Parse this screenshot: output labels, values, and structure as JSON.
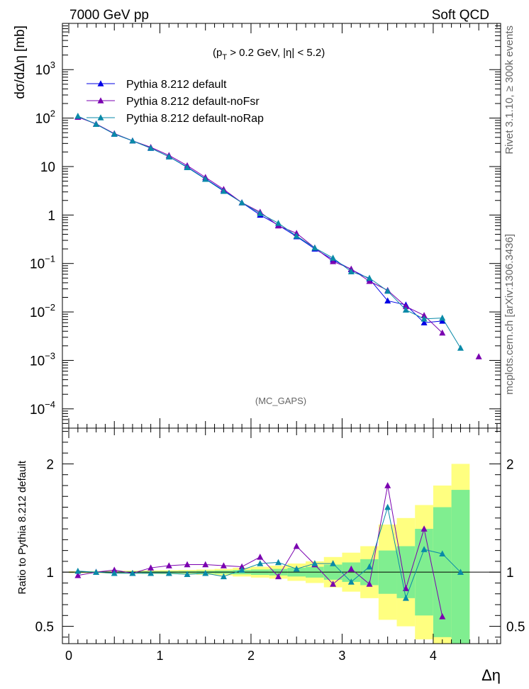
{
  "header": {
    "left": "7000 GeV pp",
    "right": "Soft QCD",
    "cut": "(pT > 0.2 GeV, |η| < 5.2)",
    "cut_parts": {
      "open": "(p",
      "sub": "T",
      "rest": " > 0.2 GeV, |η| < 5.2)"
    },
    "watermark": "(MC_GAPS)",
    "side_top": "Rivet 3.1.10, ≥ 300k events",
    "side_bottom": "mcplots.cern.ch [arXiv:1306.3436]"
  },
  "colors": {
    "default": "#0000e6",
    "noFsr": "#7a00b0",
    "noRap": "#0a8aa8",
    "band_outer": "#ffff80",
    "band_inner": "#80ee90"
  },
  "chart_data": [
    {
      "type": "line",
      "panel": "main",
      "ylabel": "dσ/dΔη [mb]",
      "ylog": true,
      "ylim": [
        4e-05,
        9000
      ],
      "xlim": [
        -0.07,
        4.74
      ],
      "y_ticks": [
        "10^{-4}",
        "10^{-3}",
        "10^{-2}",
        "10^{-1}",
        "1",
        "10",
        "10^{2}",
        "10^{3}"
      ],
      "legend": "top-left",
      "x": [
        0.1,
        0.3,
        0.5,
        0.7,
        0.9,
        1.1,
        1.3,
        1.5,
        1.7,
        1.9,
        2.1,
        2.3,
        2.5,
        2.7,
        2.9,
        3.1,
        3.3,
        3.5,
        3.7,
        3.9,
        4.1,
        4.3,
        4.5
      ],
      "series": [
        {
          "name": "Pythia 8.212 default",
          "key": "default",
          "values": [
            108,
            75,
            47,
            34,
            24,
            16,
            9.8,
            5.6,
            3.2,
            1.8,
            1.0,
            0.62,
            0.36,
            0.2,
            0.12,
            0.075,
            0.048,
            0.017,
            0.014,
            0.006,
            0.0065,
            null,
            null
          ]
        },
        {
          "name": "Pythia 8.212 default-noFsr",
          "key": "noFsr",
          "values": [
            105,
            76,
            48,
            34,
            25,
            17,
            10.5,
            6.0,
            3.4,
            1.8,
            1.15,
            0.6,
            0.42,
            0.21,
            0.11,
            0.077,
            0.043,
            0.028,
            0.013,
            0.0085,
            0.0037,
            null,
            0.0012
          ]
        },
        {
          "name": "Pythia 8.212 default-noRap",
          "key": "noRap",
          "values": [
            110,
            75,
            47,
            34,
            24,
            16,
            9.6,
            5.5,
            3.1,
            1.8,
            1.08,
            0.68,
            0.37,
            0.21,
            0.13,
            0.068,
            0.05,
            0.027,
            0.011,
            0.0072,
            0.0075,
            0.0018,
            null
          ]
        }
      ]
    },
    {
      "type": "line",
      "panel": "ratio",
      "ylabel": "Ratio to Pythia 8.212 default",
      "xlabel": "Δη",
      "ylim": [
        0.34,
        2.33
      ],
      "xlim": [
        -0.07,
        4.74
      ],
      "y_ticks": [
        "0.5",
        "1",
        "2"
      ],
      "x_ticks": [
        "0",
        "1",
        "2",
        "3",
        "4"
      ],
      "x": [
        0.1,
        0.3,
        0.5,
        0.7,
        0.9,
        1.1,
        1.3,
        1.5,
        1.7,
        1.9,
        2.1,
        2.3,
        2.5,
        2.7,
        2.9,
        3.1,
        3.3,
        3.5,
        3.7,
        3.9,
        4.1,
        4.3,
        4.5
      ],
      "series": [
        {
          "name": "Pythia 8.212 default-noFsr",
          "key": "noFsr",
          "values": [
            0.97,
            1.0,
            1.02,
            0.99,
            1.04,
            1.06,
            1.07,
            1.07,
            1.06,
            1.05,
            1.14,
            0.96,
            1.24,
            1.07,
            0.89,
            1.03,
            0.89,
            1.8,
            0.85,
            1.4,
            0.59,
            null,
            null
          ]
        },
        {
          "name": "Pythia 8.212 default-noRap",
          "key": "noRap",
          "values": [
            1.01,
            1.0,
            0.99,
            0.99,
            0.99,
            0.99,
            0.98,
            0.99,
            0.96,
            1.02,
            1.08,
            1.09,
            1.03,
            1.08,
            1.08,
            0.91,
            1.05,
            1.6,
            0.76,
            1.21,
            1.17,
            1.0,
            null
          ]
        }
      ],
      "band": {
        "edges": [
          0.0,
          0.2,
          0.4,
          0.6,
          0.8,
          1.0,
          1.2,
          1.4,
          1.6,
          1.8,
          2.0,
          2.2,
          2.4,
          2.6,
          2.8,
          3.0,
          3.2,
          3.4,
          3.6,
          3.8,
          4.0,
          4.2,
          4.4
        ],
        "outer": [
          0.008,
          0.01,
          0.012,
          0.014,
          0.016,
          0.018,
          0.02,
          0.024,
          0.03,
          0.04,
          0.05,
          0.06,
          0.08,
          0.1,
          0.14,
          0.18,
          0.24,
          0.44,
          0.5,
          0.62,
          0.8,
          1.0
        ],
        "inner": [
          0.004,
          0.005,
          0.006,
          0.007,
          0.008,
          0.009,
          0.01,
          0.012,
          0.015,
          0.02,
          0.025,
          0.03,
          0.04,
          0.05,
          0.07,
          0.09,
          0.12,
          0.2,
          0.24,
          0.4,
          0.6,
          0.76
        ]
      }
    }
  ]
}
